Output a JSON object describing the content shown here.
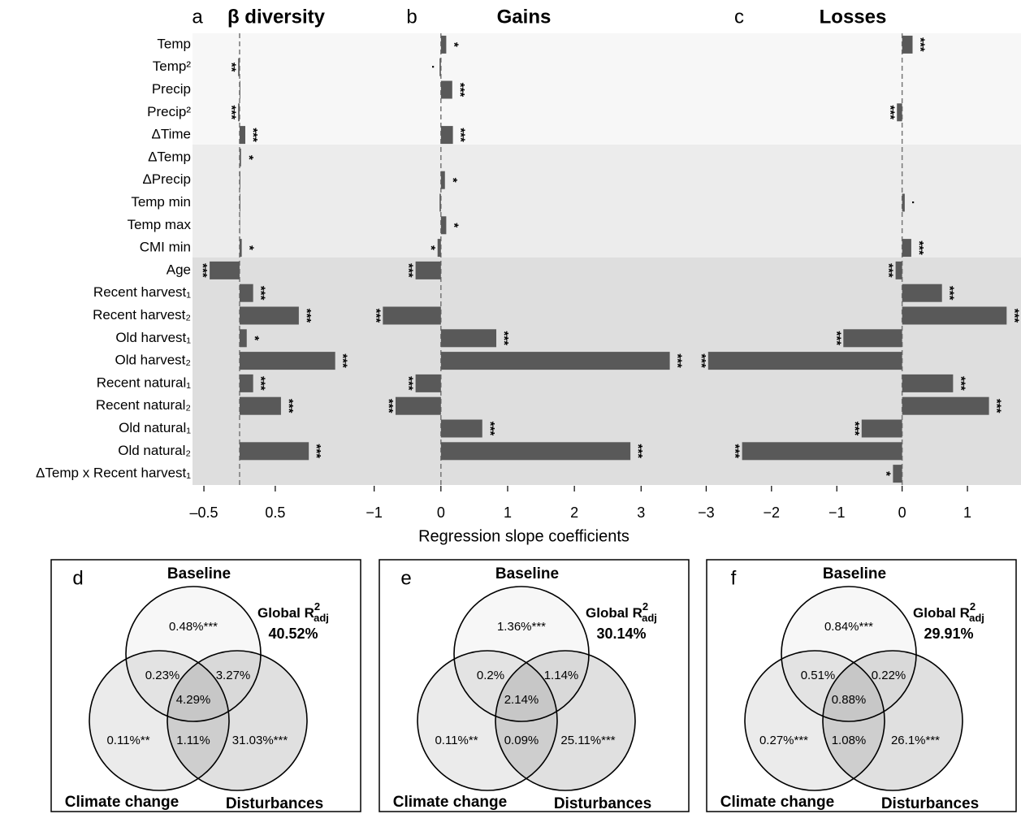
{
  "chart_data": {
    "type": "bar",
    "categories": [
      "Temp",
      "Temp²",
      "Precip",
      "Precip²",
      "ΔTime",
      "ΔTemp",
      "ΔPrecip",
      "Temp min",
      "Temp max",
      "CMI min",
      "Age",
      "Recent harvest₁",
      "Recent harvest₂",
      "Old harvest₁",
      "Old harvest₂",
      "Recent natural₁",
      "Recent natural₂",
      "Old natural₁",
      "Old natural₂",
      "ΔTemp x Recent harvest₁"
    ],
    "xlabel": "Regression slope coefficients",
    "color": "#595959",
    "panels": [
      {
        "label": "a",
        "title": "β diversity",
        "xlim": [
          -0.66,
          1.56
        ],
        "xticks": [
          {
            "value": -0.5,
            "label": "–0.5"
          },
          0.5
        ],
        "values": [
          null,
          -0.02,
          0.01,
          -0.02,
          0.08,
          0.02,
          0.01,
          0.01,
          0.005,
          0.03,
          -0.42,
          0.19,
          0.83,
          0.1,
          1.34,
          0.19,
          0.58,
          null,
          0.97,
          null
        ],
        "significance": [
          null,
          "**",
          null,
          "***",
          "***",
          "*",
          null,
          null,
          null,
          "*",
          "***",
          "***",
          "***",
          "*",
          "***",
          "***",
          "***",
          null,
          "***",
          null
        ]
      },
      {
        "label": "b",
        "title": "Gains",
        "xlim": [
          -1.13,
          3.8
        ],
        "xticks": [
          {
            "value": -1,
            "label": "−1"
          },
          0,
          1,
          2,
          3
        ],
        "values": [
          0.08,
          -0.02,
          0.17,
          null,
          0.18,
          null,
          0.06,
          -0.02,
          0.08,
          -0.05,
          -0.38,
          null,
          -0.87,
          0.83,
          3.43,
          -0.38,
          -0.68,
          0.62,
          2.84,
          null
        ],
        "significance": [
          "*",
          "·",
          "***",
          null,
          "***",
          null,
          "*",
          null,
          "*",
          "*",
          "***",
          null,
          "***",
          "***",
          "***",
          "***",
          "***",
          "***",
          "***",
          null
        ]
      },
      {
        "label": "c",
        "title": "Losses",
        "xlim": [
          -3.03,
          1.82
        ],
        "xticks": [
          {
            "value": -3,
            "label": "−3"
          },
          {
            "value": -2,
            "label": "−2"
          },
          {
            "value": -1,
            "label": "−1"
          },
          0,
          1
        ],
        "values": [
          0.16,
          null,
          null,
          -0.08,
          null,
          null,
          null,
          0.04,
          null,
          0.14,
          -0.1,
          0.61,
          1.6,
          -0.9,
          -2.97,
          0.78,
          1.33,
          -0.62,
          -2.45,
          -0.14
        ],
        "significance": [
          "***",
          null,
          null,
          "***",
          null,
          null,
          null,
          "·",
          null,
          "***",
          "***",
          "***",
          "***",
          "***",
          "***",
          "***",
          "***",
          "***",
          "***",
          "*"
        ]
      }
    ]
  },
  "venns": [
    {
      "label": "d",
      "sets": [
        "Baseline",
        "Climate change",
        "Disturbances"
      ],
      "r2": {
        "text": "Global R",
        "sup": "2",
        "sub": "adj"
      },
      "r2_value": "40.52%",
      "regions": {
        "baseline": "0.48%***",
        "baseline_climate": "0.23%",
        "baseline_disturbances": "3.27%",
        "all": "4.29%",
        "climate": "0.11%**",
        "climate_disturbances": "1.11%",
        "disturbances": "31.03%***"
      }
    },
    {
      "label": "e",
      "sets": [
        "Baseline",
        "Climate change",
        "Disturbances"
      ],
      "r2": {
        "text": "Global R",
        "sup": "2",
        "sub": "adj"
      },
      "r2_value": "30.14%",
      "regions": {
        "baseline": "1.36%***",
        "baseline_climate": "0.2%",
        "baseline_disturbances": "1.14%",
        "all": "2.14%",
        "climate": "0.11%**",
        "climate_disturbances": "0.09%",
        "disturbances": "25.11%***"
      }
    },
    {
      "label": "f",
      "sets": [
        "Baseline",
        "Climate change",
        "Disturbances"
      ],
      "r2": {
        "text": "Global R",
        "sup": "2",
        "sub": "adj"
      },
      "r2_value": "29.91%",
      "regions": {
        "baseline": "0.84%***",
        "baseline_climate": "0.51%",
        "baseline_disturbances": "0.22%",
        "all": "0.88%",
        "climate": "0.27%***",
        "climate_disturbances": "1.08%",
        "disturbances": "26.1%***"
      }
    }
  ]
}
